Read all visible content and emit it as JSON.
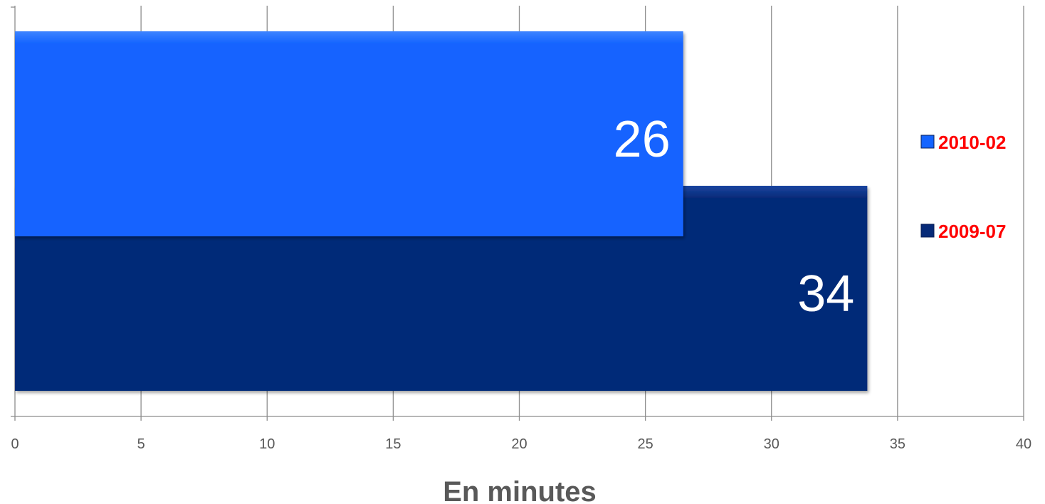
{
  "chart_data": {
    "type": "bar",
    "orientation": "horizontal",
    "series": [
      {
        "name": "2010-02",
        "value": 26.5,
        "label": "26",
        "color": "#1464ff"
      },
      {
        "name": "2009-07",
        "value": 33.8,
        "label": "34",
        "color": "#062a78"
      }
    ],
    "xlabel": "En minutes",
    "ylabel": "",
    "xlim": [
      0,
      40
    ],
    "xticks": [
      "0",
      "5",
      "10",
      "15",
      "20",
      "25",
      "30",
      "35",
      "40"
    ],
    "grid": "vertical",
    "legend_position": "right"
  },
  "colors": {
    "grid": "#8c8c8c",
    "tick_label": "#595959",
    "legend_text": "#ff0000",
    "data_label": "#ffffff"
  }
}
